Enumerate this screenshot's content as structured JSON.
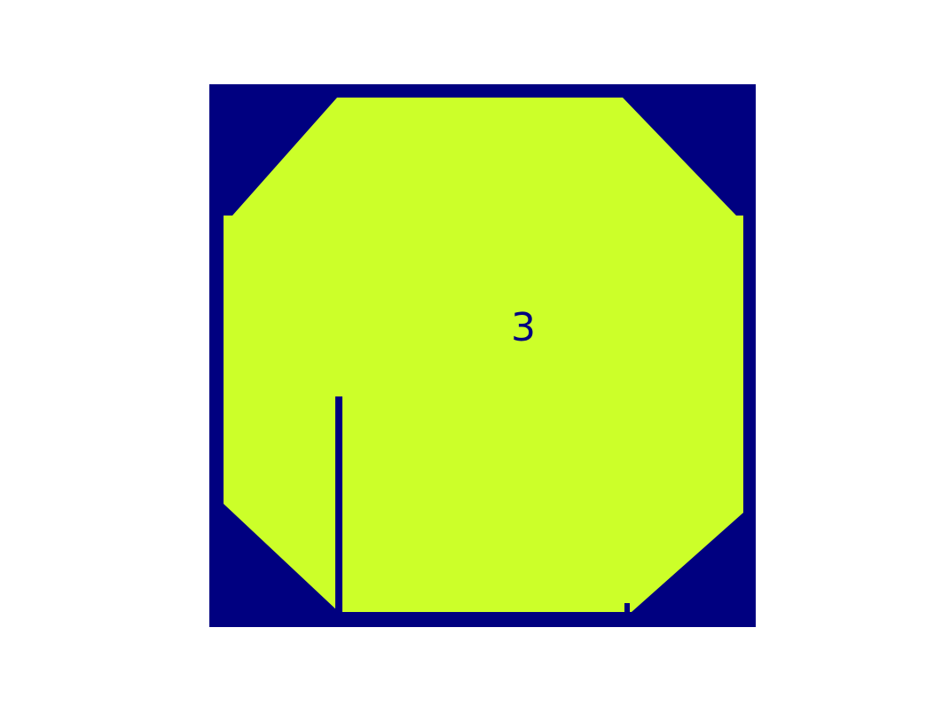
{
  "figure": {
    "background_color": "#ffffff",
    "panel_color": "#000080",
    "shape_color": "#ccff29",
    "label_color": "#000080",
    "region_label": "3"
  }
}
